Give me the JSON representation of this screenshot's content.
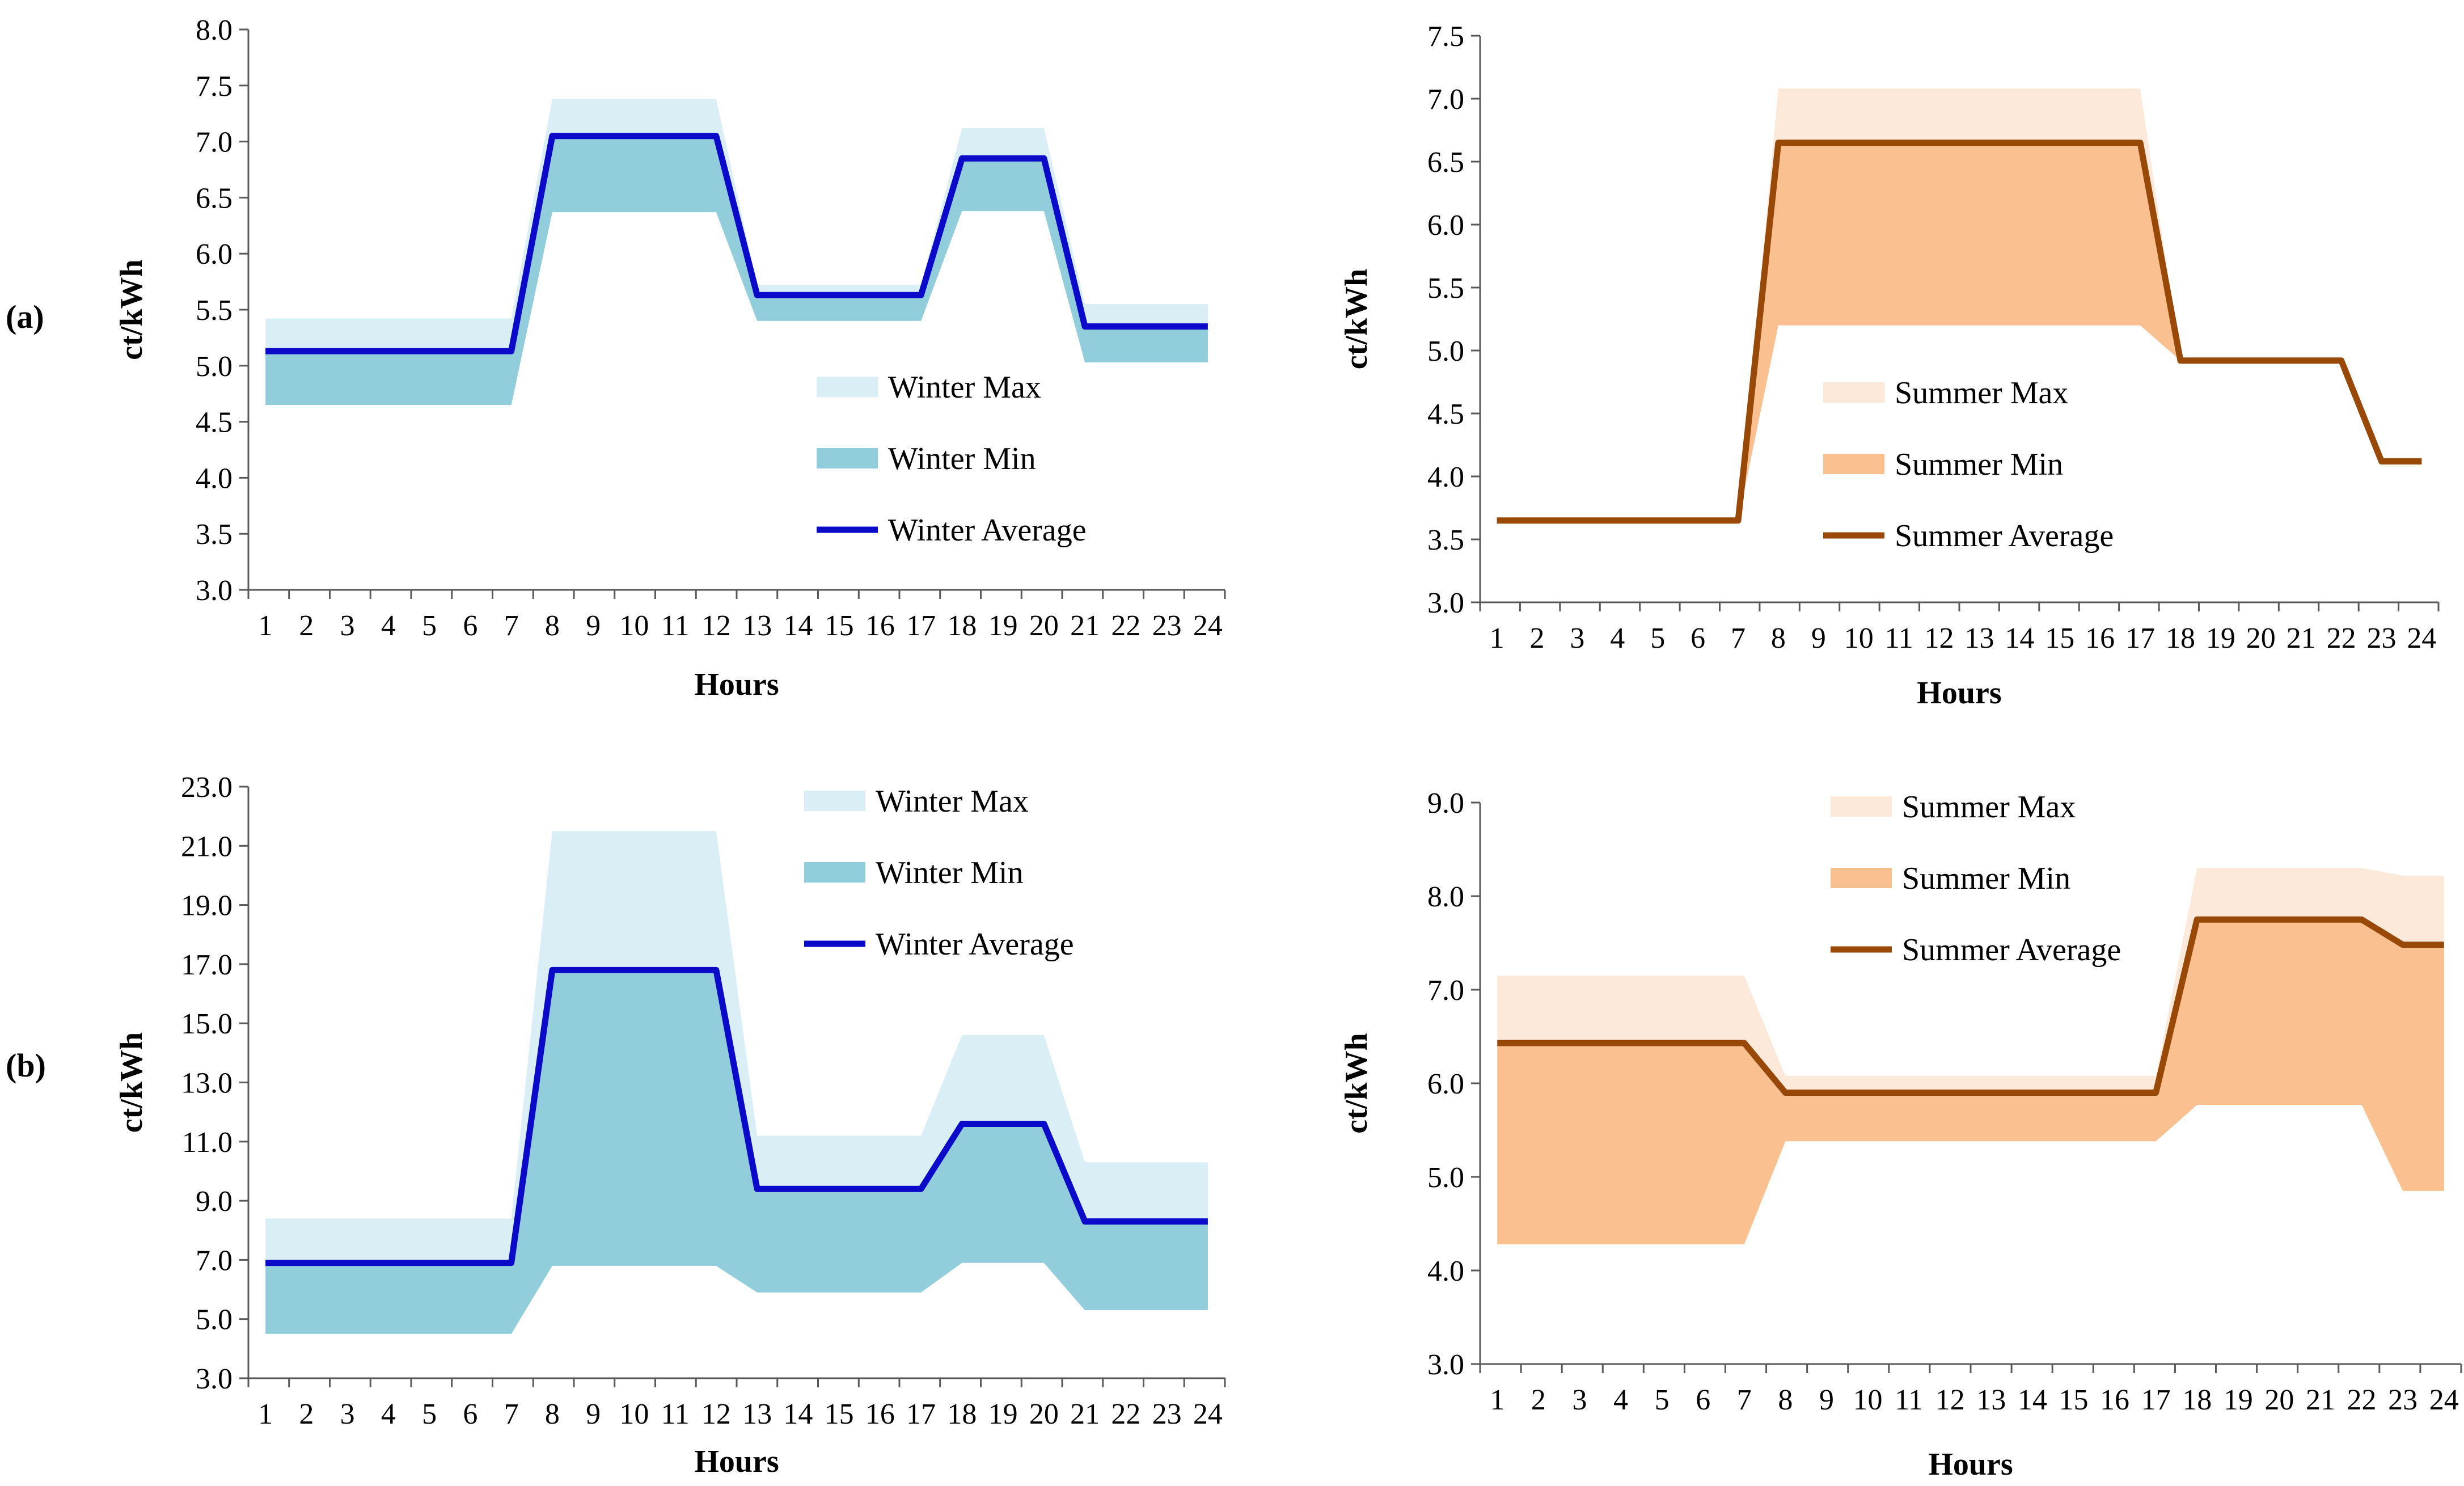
{
  "panel_labels": [
    "(a)",
    "(b)"
  ],
  "chart_data": [
    {
      "type": "area",
      "panel": "(a)",
      "xlabel": "Hours",
      "ylabel": "ct/kWh",
      "x": [
        1,
        2,
        3,
        4,
        5,
        6,
        7,
        8,
        9,
        10,
        11,
        12,
        13,
        14,
        15,
        16,
        17,
        18,
        19,
        20,
        21,
        22,
        23,
        24
      ],
      "ylim": [
        3.0,
        8.0
      ],
      "yticks": [
        "3.0",
        "3.5",
        "4.0",
        "4.5",
        "5.0",
        "5.5",
        "6.0",
        "6.5",
        "7.0",
        "7.5",
        "8.0"
      ],
      "legend": "center-right",
      "colors": {
        "max": "#daeef5",
        "min": "#92cddc",
        "avg": "#0a0ac8"
      },
      "series": [
        {
          "name": "Winter Max",
          "values": [
            5.42,
            5.42,
            5.42,
            5.42,
            5.42,
            5.42,
            5.42,
            7.38,
            7.38,
            7.38,
            7.38,
            7.38,
            5.72,
            5.72,
            5.72,
            5.72,
            5.72,
            7.12,
            7.12,
            7.12,
            5.55,
            5.55,
            5.55,
            5.55
          ]
        },
        {
          "name": "Winter Min",
          "values": [
            4.65,
            4.65,
            4.65,
            4.65,
            4.65,
            4.65,
            4.65,
            6.37,
            6.37,
            6.37,
            6.37,
            6.37,
            5.4,
            5.4,
            5.4,
            5.4,
            5.4,
            6.38,
            6.38,
            6.38,
            5.03,
            5.03,
            5.03,
            5.03
          ]
        },
        {
          "name": "Winter Average",
          "values": [
            5.13,
            5.13,
            5.13,
            5.13,
            5.13,
            5.13,
            5.13,
            7.05,
            7.05,
            7.05,
            7.05,
            7.05,
            5.63,
            5.63,
            5.63,
            5.63,
            5.63,
            6.85,
            6.85,
            6.85,
            5.35,
            5.35,
            5.35,
            5.35
          ]
        }
      ]
    },
    {
      "type": "area",
      "panel": "(a)",
      "xlabel": "Hours",
      "ylabel": "ct/kWh",
      "x": [
        1,
        2,
        3,
        4,
        5,
        6,
        7,
        8,
        9,
        10,
        11,
        12,
        13,
        14,
        15,
        16,
        17,
        18,
        19,
        20,
        21,
        22,
        23,
        24
      ],
      "ylim": [
        3.0,
        7.5
      ],
      "yticks": [
        "3.0",
        "3.5",
        "4.0",
        "4.5",
        "5.0",
        "5.5",
        "6.0",
        "6.5",
        "7.0",
        "7.5"
      ],
      "legend": "center-right",
      "colors": {
        "max": "#fde9d9",
        "min": "#fac090",
        "avg": "#984807"
      },
      "series": [
        {
          "name": "Summer Max",
          "values": [
            3.65,
            3.65,
            3.65,
            3.65,
            3.65,
            3.65,
            3.65,
            7.08,
            7.08,
            7.08,
            7.08,
            7.08,
            7.08,
            7.08,
            7.08,
            7.08,
            7.08,
            4.92,
            4.92,
            4.92,
            4.92,
            4.92,
            4.12,
            4.12
          ]
        },
        {
          "name": "Summer Min",
          "values": [
            3.65,
            3.65,
            3.65,
            3.65,
            3.65,
            3.65,
            3.65,
            5.2,
            5.2,
            5.2,
            5.2,
            5.2,
            5.2,
            5.2,
            5.2,
            5.2,
            5.2,
            4.92,
            4.92,
            4.92,
            4.92,
            4.92,
            4.12,
            4.12
          ]
        },
        {
          "name": "Summer Average",
          "values": [
            3.65,
            3.65,
            3.65,
            3.65,
            3.65,
            3.65,
            3.65,
            6.65,
            6.65,
            6.65,
            6.65,
            6.65,
            6.65,
            6.65,
            6.65,
            6.65,
            6.65,
            4.92,
            4.92,
            4.92,
            4.92,
            4.92,
            4.12,
            4.12
          ]
        }
      ]
    },
    {
      "type": "area",
      "panel": "(b)",
      "xlabel": "Hours",
      "ylabel": "ct/kWh",
      "x": [
        1,
        2,
        3,
        4,
        5,
        6,
        7,
        8,
        9,
        10,
        11,
        12,
        13,
        14,
        15,
        16,
        17,
        18,
        19,
        20,
        21,
        22,
        23,
        24
      ],
      "ylim": [
        3.0,
        23.0
      ],
      "yticks": [
        "3.0",
        "5.0",
        "7.0",
        "9.0",
        "11.0",
        "13.0",
        "15.0",
        "17.0",
        "19.0",
        "21.0",
        "23.0"
      ],
      "legend": "top-right",
      "colors": {
        "max": "#daeef5",
        "min": "#92cddc",
        "avg": "#0a0ac8"
      },
      "series": [
        {
          "name": "Winter Max",
          "values": [
            8.4,
            8.4,
            8.4,
            8.4,
            8.4,
            8.4,
            8.4,
            21.5,
            21.5,
            21.5,
            21.5,
            21.5,
            11.2,
            11.2,
            11.2,
            11.2,
            11.2,
            14.6,
            14.6,
            14.6,
            10.3,
            10.3,
            10.3,
            10.3
          ]
        },
        {
          "name": "Winter Min",
          "values": [
            4.5,
            4.5,
            4.5,
            4.5,
            4.5,
            4.5,
            4.5,
            6.8,
            6.8,
            6.8,
            6.8,
            6.8,
            5.9,
            5.9,
            5.9,
            5.9,
            5.9,
            6.9,
            6.9,
            6.9,
            5.3,
            5.3,
            5.3,
            5.3
          ]
        },
        {
          "name": "Winter Average",
          "values": [
            6.9,
            6.9,
            6.9,
            6.9,
            6.9,
            6.9,
            6.9,
            16.8,
            16.8,
            16.8,
            16.8,
            16.8,
            9.4,
            9.4,
            9.4,
            9.4,
            9.4,
            11.6,
            11.6,
            11.6,
            8.3,
            8.3,
            8.3,
            8.3
          ]
        }
      ]
    },
    {
      "type": "area",
      "panel": "(b)",
      "xlabel": "Hours",
      "ylabel": "ct/kWh",
      "x": [
        1,
        2,
        3,
        4,
        5,
        6,
        7,
        8,
        9,
        10,
        11,
        12,
        13,
        14,
        15,
        16,
        17,
        18,
        19,
        20,
        21,
        22,
        23,
        24
      ],
      "ylim": [
        3.0,
        9.0
      ],
      "yticks": [
        "3.0",
        "4.0",
        "5.0",
        "6.0",
        "7.0",
        "8.0",
        "9.0"
      ],
      "legend": "top-center",
      "colors": {
        "max": "#fde9d9",
        "min": "#fac090",
        "avg": "#984807"
      },
      "series": [
        {
          "name": "Summer Max",
          "values": [
            7.15,
            7.15,
            7.15,
            7.15,
            7.15,
            7.15,
            7.15,
            6.08,
            6.08,
            6.08,
            6.08,
            6.08,
            6.08,
            6.08,
            6.08,
            6.08,
            6.08,
            8.3,
            8.3,
            8.3,
            8.3,
            8.3,
            8.22,
            8.22
          ]
        },
        {
          "name": "Summer Min",
          "values": [
            4.28,
            4.28,
            4.28,
            4.28,
            4.28,
            4.28,
            4.28,
            5.38,
            5.38,
            5.38,
            5.38,
            5.38,
            5.38,
            5.38,
            5.38,
            5.38,
            5.38,
            5.77,
            5.77,
            5.77,
            5.77,
            5.77,
            4.85,
            4.85
          ]
        },
        {
          "name": "Summer Average",
          "values": [
            6.43,
            6.43,
            6.43,
            6.43,
            6.43,
            6.43,
            6.43,
            5.9,
            5.9,
            5.9,
            5.9,
            5.9,
            5.9,
            5.9,
            5.9,
            5.9,
            5.9,
            7.75,
            7.75,
            7.75,
            7.75,
            7.75,
            7.48,
            7.48
          ]
        }
      ]
    }
  ]
}
